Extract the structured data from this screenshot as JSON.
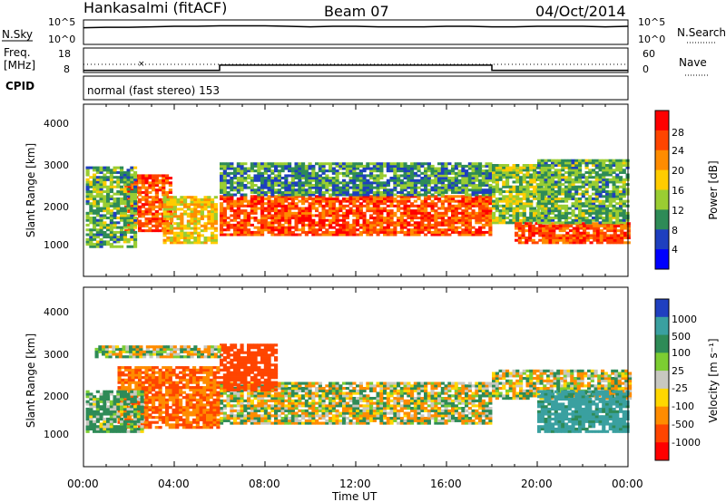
{
  "header": {
    "station": "Hankasalmi (fitACF)",
    "beam": "Beam 07",
    "date": "04/Oct/2014"
  },
  "nsky_panel": {
    "left_label": "N.Sky",
    "left_ticks": [
      "10^5",
      "10^0"
    ],
    "right_label": "N.Search",
    "right_ticks": [
      "10^5",
      "10^0"
    ],
    "series": [
      {
        "x": [
          0,
          1,
          2,
          3,
          4,
          5,
          6,
          7,
          8,
          9,
          10,
          11,
          12,
          13,
          14,
          15,
          16,
          17,
          18,
          19,
          20,
          21,
          22,
          23,
          24
        ],
        "y": [
          3.4,
          3.5,
          3.5,
          3.6,
          3.7,
          3.7,
          3.8,
          3.8,
          3.8,
          3.7,
          3.6,
          3.7,
          3.7,
          3.6,
          3.6,
          3.6,
          3.7,
          3.7,
          3.6,
          3.6,
          3.7,
          3.7,
          3.7,
          3.6,
          3.7
        ]
      }
    ]
  },
  "freq_panel": {
    "left_label_1": "Freq.",
    "left_label_2": "[MHz]",
    "left_ticks": [
      "18",
      "8"
    ],
    "right_label": "Nave",
    "right_ticks": [
      "60",
      "0"
    ],
    "cpid_label": "CPID",
    "cpid_text": "normal (fast stereo) 153",
    "frequency_step": [
      [
        0,
        8.9
      ],
      [
        6,
        8.9
      ],
      [
        6,
        11.0
      ],
      [
        18,
        11.0
      ],
      [
        18,
        8.9
      ],
      [
        24,
        8.9
      ]
    ],
    "nave_level": 20
  },
  "power_panel": {
    "ylabel": "Slant Range [km]",
    "yticks": [
      "1000",
      "2000",
      "3000",
      "4000"
    ],
    "colorbar_label": "Power [dB]",
    "colorbar_ticks": [
      "28",
      "24",
      "20",
      "16",
      "12",
      "8",
      "4"
    ],
    "colorbar_colors": [
      "#ff0000",
      "#ff4500",
      "#ff8c00",
      "#ffcc00",
      "#9acd32",
      "#2e8b57",
      "#1e3fbf",
      "#0000ff"
    ]
  },
  "velocity_panel": {
    "ylabel": "Slant Range [km]",
    "yticks": [
      "1000",
      "2000",
      "3000",
      "4000"
    ],
    "colorbar_label": "Velocity [m s⁻¹]",
    "colorbar_ticks": [
      "1000",
      "500",
      "100",
      "25",
      "-25",
      "-100",
      "-500",
      "-1000"
    ],
    "colorbar_colors": [
      "#2040c0",
      "#3aa0a0",
      "#2e8b57",
      "#7ccd32",
      "#c8c8c0",
      "#ffd700",
      "#ff8c00",
      "#ff4500",
      "#ff0000"
    ]
  },
  "xaxis": {
    "label": "Time UT",
    "ticks": [
      "00:00",
      "04:00",
      "08:00",
      "12:00",
      "16:00",
      "20:00",
      "00:00"
    ]
  },
  "chart_data": {
    "type": "heatmap",
    "x_range_hours": [
      0,
      24
    ],
    "y_range_km": [
      180,
      4500
    ],
    "power_echo_regions": [
      {
        "t0": 1.8,
        "t1": 3.8,
        "r0": 1300,
        "r1": 2700,
        "level_db": 26
      },
      {
        "t0": 0.1,
        "t1": 2.2,
        "r0": 900,
        "r1": 2900,
        "level_db": 12
      },
      {
        "t0": 3.5,
        "t1": 5.8,
        "r0": 1000,
        "r1": 2200,
        "level_db": 18
      },
      {
        "t0": 6.0,
        "t1": 18.0,
        "r0": 1200,
        "r1": 2200,
        "level_db": 26
      },
      {
        "t0": 6.0,
        "t1": 18.0,
        "r0": 2200,
        "r1": 3000,
        "level_db": 10
      },
      {
        "t0": 18.0,
        "t1": 20.5,
        "r0": 1500,
        "r1": 3000,
        "level_db": 14
      },
      {
        "t0": 19.0,
        "t1": 24.0,
        "r0": 1000,
        "r1": 1500,
        "level_db": 26
      },
      {
        "t0": 20.0,
        "t1": 24.0,
        "r0": 1500,
        "r1": 3100,
        "level_db": 12
      }
    ],
    "velocity_regions": [
      {
        "t0": 6.0,
        "t1": 18.0,
        "r0": 1200,
        "r1": 2200,
        "velocity": 0
      },
      {
        "t0": 1.5,
        "t1": 6.0,
        "r0": 1100,
        "r1": 2600,
        "velocity": -300
      },
      {
        "t0": 6.0,
        "t1": 8.5,
        "r0": 2000,
        "r1": 3100,
        "velocity": -500
      },
      {
        "t0": 0.5,
        "t1": 6.0,
        "r0": 2800,
        "r1": 3100,
        "velocity": 0
      },
      {
        "t0": 18.0,
        "t1": 24.0,
        "r0": 1800,
        "r1": 2500,
        "velocity": 0
      },
      {
        "t0": 20.0,
        "t1": 24.0,
        "r0": 1000,
        "r1": 2000,
        "velocity": 400
      },
      {
        "t0": 0.1,
        "t1": 2.5,
        "r0": 1000,
        "r1": 2000,
        "velocity": 100
      }
    ]
  }
}
